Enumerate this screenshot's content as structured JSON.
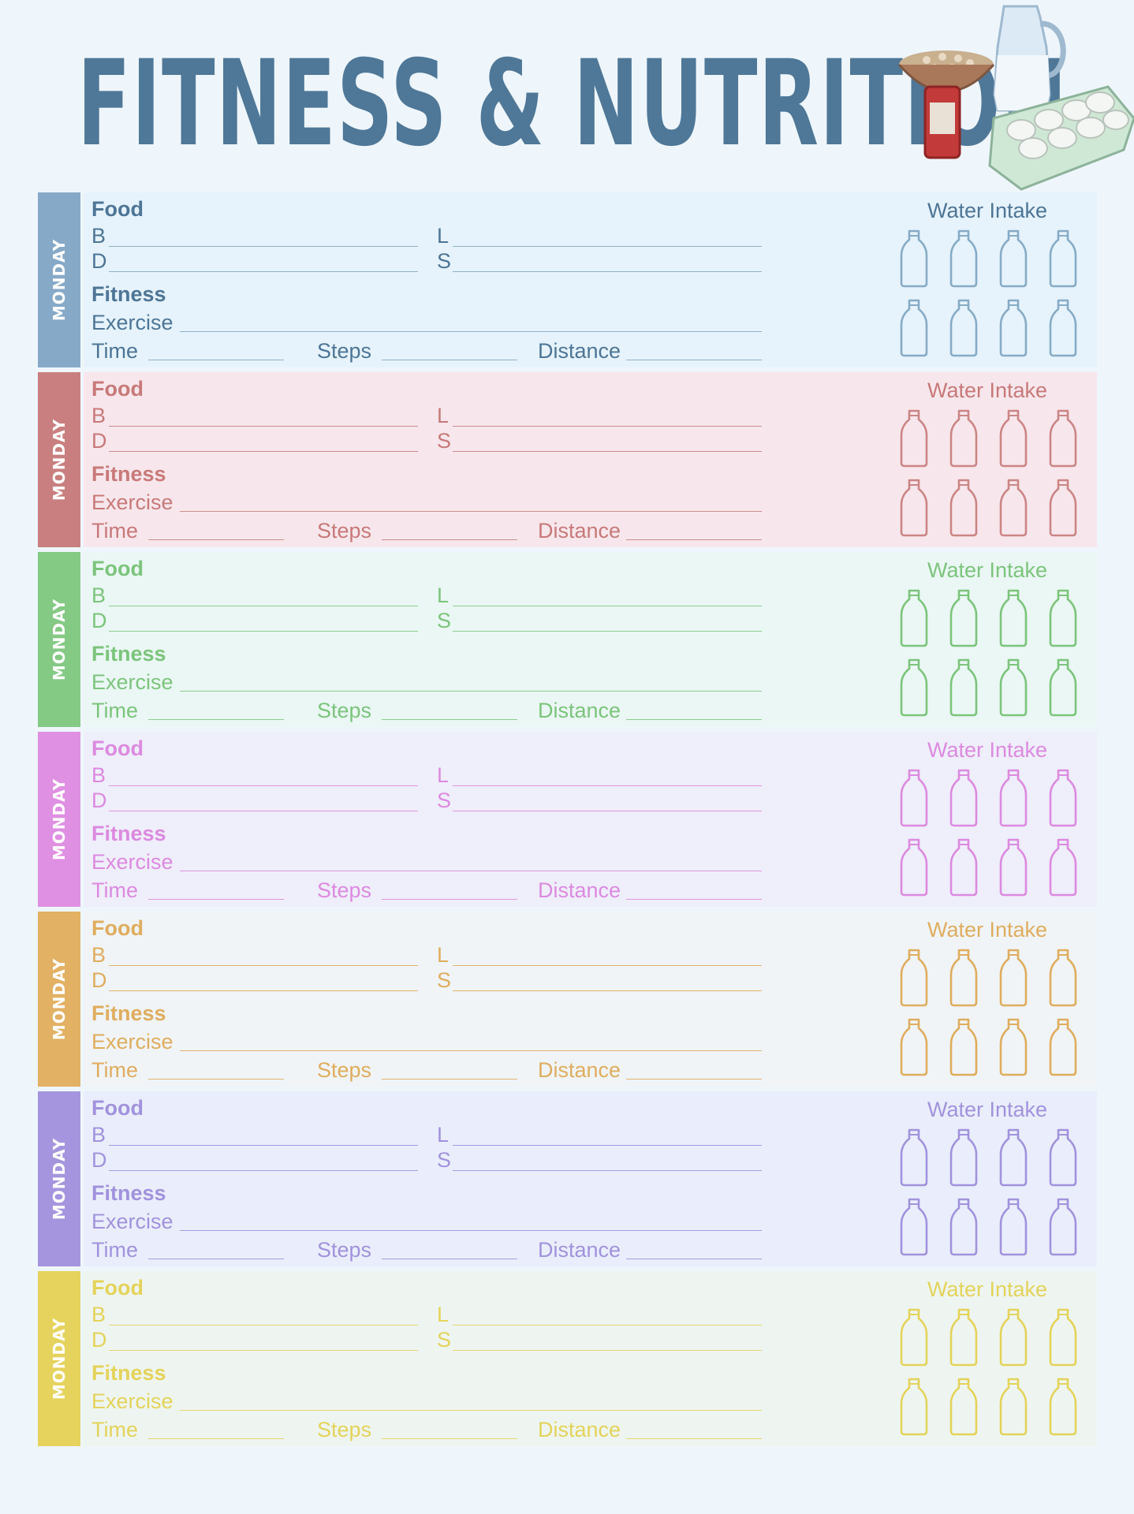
{
  "title": "FITNESS & NUTRITION",
  "labels": {
    "food": "Food",
    "b": "B",
    "d": "D",
    "l": "L",
    "s": "S",
    "fitness": "Fitness",
    "exercise": "Exercise",
    "time": "Time",
    "steps": "Steps",
    "distance": "Distance",
    "water_intake": "Water Intake"
  },
  "days": [
    {
      "day": "MONDAY",
      "tab_color": "#86a9c8",
      "panel_color": "#e6f3fc",
      "text_color": "#4d7596",
      "line_color": "#8fb1c9",
      "bottle_color": "#86abc6"
    },
    {
      "day": "MONDAY",
      "tab_color": "#c97f7f",
      "panel_color": "#f7e7ec",
      "text_color": "#c87979",
      "line_color": "#cc8d8d",
      "bottle_color": "#cc8585"
    },
    {
      "day": "MONDAY",
      "tab_color": "#84c984",
      "panel_color": "#eaf7f4",
      "text_color": "#7cc47c",
      "line_color": "#8fcc8f",
      "bottle_color": "#7cc47c"
    },
    {
      "day": "MONDAY",
      "tab_color": "#df90e2",
      "panel_color": "#efeefb",
      "text_color": "#dc8ae0",
      "line_color": "#de96e1",
      "bottle_color": "#dc8ae0"
    },
    {
      "day": "MONDAY",
      "tab_color": "#e2b164",
      "panel_color": "#f0f4f7",
      "text_color": "#dfad5e",
      "line_color": "#e0b36d",
      "bottle_color": "#dfad5e"
    },
    {
      "day": "MONDAY",
      "tab_color": "#a595de",
      "panel_color": "#eaeefc",
      "text_color": "#a192dd",
      "line_color": "#a89ae0",
      "bottle_color": "#a192dd"
    },
    {
      "day": "MONDAY",
      "tab_color": "#e5d35d",
      "panel_color": "#eef5f1",
      "text_color": "#e4d35a",
      "line_color": "#e6d66c",
      "bottle_color": "#e4d35a"
    }
  ],
  "bottles_per_day": 8,
  "icons": [
    "water-bottle-icon",
    "pitcher-and-eggs-illustration"
  ]
}
